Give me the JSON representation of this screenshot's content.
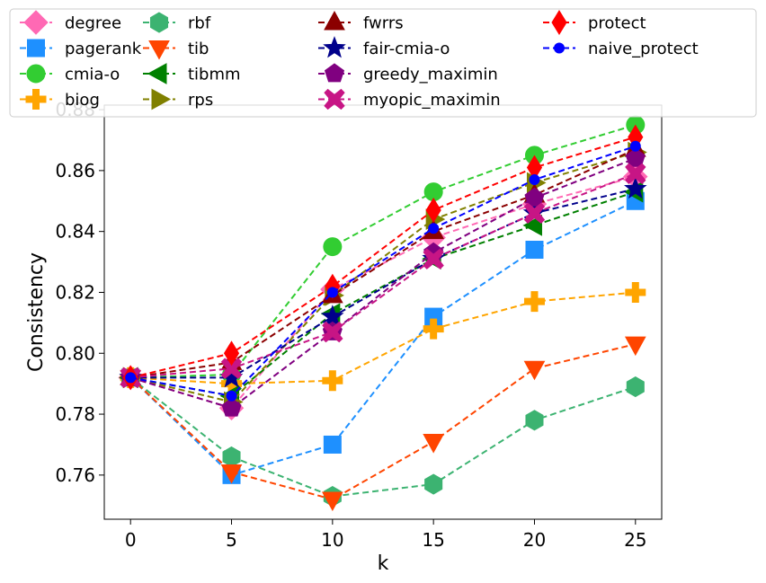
{
  "chart_data": {
    "type": "line",
    "title": "",
    "xlabel": "k",
    "ylabel": "Consistency",
    "x": [
      0,
      5,
      10,
      15,
      20,
      25
    ],
    "xlim": [
      -1.3,
      26.3
    ],
    "ylim": [
      0.7455,
      0.8815
    ],
    "xticks": [
      0,
      5,
      10,
      15,
      20,
      25
    ],
    "yticks": [
      0.76,
      0.78,
      0.8,
      0.82,
      0.84,
      0.86,
      0.88
    ],
    "ytick_labels": [
      "0.76",
      "0.78",
      "0.80",
      "0.82",
      "0.84",
      "0.86",
      "0.88"
    ],
    "grid": false,
    "legend_position": "top",
    "legend_columns": 4,
    "series": [
      {
        "name": "degree",
        "color": "#ff69b4",
        "marker": "diamond",
        "values": [
          0.792,
          0.782,
          0.821,
          0.838,
          0.849,
          0.858
        ]
      },
      {
        "name": "pagerank",
        "color": "#1e90ff",
        "marker": "square",
        "values": [
          0.792,
          0.76,
          0.77,
          0.812,
          0.834,
          0.85
        ]
      },
      {
        "name": "cmia-o",
        "color": "#32cd32",
        "marker": "circle",
        "values": [
          0.792,
          0.793,
          0.835,
          0.853,
          0.865,
          0.875
        ]
      },
      {
        "name": "biog",
        "color": "#ffa500",
        "marker": "plus",
        "values": [
          0.792,
          0.79,
          0.791,
          0.808,
          0.817,
          0.82
        ]
      },
      {
        "name": "rbf",
        "color": "#3cb371",
        "marker": "hexagon",
        "values": [
          0.792,
          0.766,
          0.753,
          0.757,
          0.778,
          0.789
        ]
      },
      {
        "name": "tib",
        "color": "#ff4500",
        "marker": "triangle-down",
        "values": [
          0.792,
          0.761,
          0.752,
          0.771,
          0.795,
          0.803
        ]
      },
      {
        "name": "tibmm",
        "color": "#008000",
        "marker": "triangle-left",
        "values": [
          0.792,
          0.786,
          0.813,
          0.831,
          0.842,
          0.853
        ]
      },
      {
        "name": "rps",
        "color": "#808000",
        "marker": "triangle-right",
        "values": [
          0.792,
          0.784,
          0.819,
          0.844,
          0.856,
          0.866
        ]
      },
      {
        "name": "fwrrs",
        "color": "#8b0000",
        "marker": "triangle-up",
        "values": [
          0.792,
          0.797,
          0.819,
          0.84,
          0.852,
          0.867
        ]
      },
      {
        "name": "fair-cmia-o",
        "color": "#00008b",
        "marker": "star",
        "values": [
          0.792,
          0.792,
          0.812,
          0.831,
          0.846,
          0.854
        ]
      },
      {
        "name": "greedy_maximin",
        "color": "#800080",
        "marker": "pentagon",
        "values": [
          0.792,
          0.782,
          0.807,
          0.833,
          0.851,
          0.864
        ]
      },
      {
        "name": "myopic_maximin",
        "color": "#c71585",
        "marker": "x",
        "values": [
          0.792,
          0.795,
          0.807,
          0.831,
          0.846,
          0.859
        ]
      },
      {
        "name": "protect",
        "color": "#ff0000",
        "marker": "thin-diamond",
        "values": [
          0.792,
          0.8,
          0.822,
          0.847,
          0.861,
          0.871
        ]
      },
      {
        "name": "naive_protect",
        "color": "#0000ff",
        "marker": "dot",
        "values": [
          0.792,
          0.786,
          0.82,
          0.841,
          0.857,
          0.868
        ]
      }
    ]
  }
}
